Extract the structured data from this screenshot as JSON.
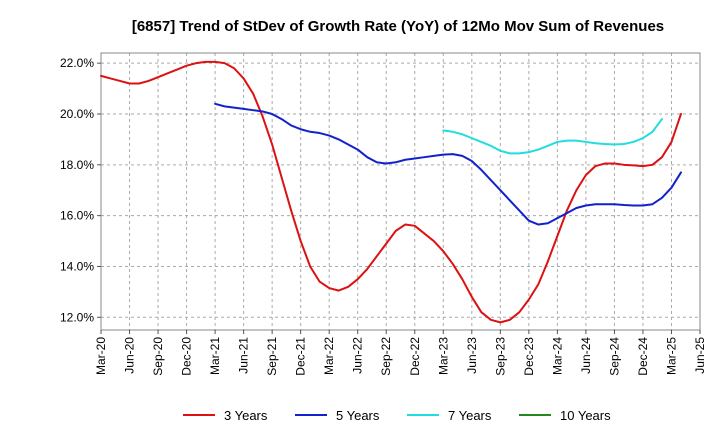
{
  "chart_data": {
    "type": "line",
    "title": "[6857]  Trend of StDev of Growth Rate (YoY) of 12Mo Mov Sum of Revenues",
    "xlabel": "",
    "ylabel": "",
    "x_tick_labels": [
      "Mar-20",
      "Jun-20",
      "Sep-20",
      "Dec-20",
      "Mar-21",
      "Jun-21",
      "Sep-21",
      "Dec-21",
      "Mar-22",
      "Jun-22",
      "Sep-22",
      "Dec-22",
      "Mar-23",
      "Jun-23",
      "Sep-23",
      "Dec-23",
      "Mar-24",
      "Jun-24",
      "Sep-24",
      "Dec-24",
      "Mar-25",
      "Jun-25"
    ],
    "y_ticks": [
      12.0,
      14.0,
      16.0,
      18.0,
      20.0,
      22.0
    ],
    "y_tick_labels": [
      "12.0%",
      "14.0%",
      "16.0%",
      "18.0%",
      "20.0%",
      "22.0%"
    ],
    "ylim": [
      11.5,
      22.4
    ],
    "grid": true,
    "legend_position": "bottom",
    "series": [
      {
        "name": "3 Years",
        "color": "#dd1111",
        "start_month_index": 0,
        "values": [
          21.5,
          21.4,
          21.3,
          21.2,
          21.2,
          21.3,
          21.45,
          21.6,
          21.75,
          21.9,
          22.0,
          22.05,
          22.05,
          22.0,
          21.8,
          21.4,
          20.8,
          19.9,
          18.8,
          17.5,
          16.2,
          15.0,
          14.0,
          13.4,
          13.15,
          13.05,
          13.2,
          13.5,
          13.9,
          14.4,
          14.9,
          15.4,
          15.65,
          15.6,
          15.3,
          15.0,
          14.6,
          14.1,
          13.5,
          12.8,
          12.2,
          11.9,
          11.8,
          11.9,
          12.2,
          12.7,
          13.3,
          14.2,
          15.2,
          16.2,
          17.0,
          17.6,
          17.95,
          18.05,
          18.05,
          18.0,
          17.98,
          17.95,
          18.0,
          18.3,
          18.9,
          20.0
        ]
      },
      {
        "name": "5 Years",
        "color": "#1122cc",
        "start_month_index": 12,
        "values": [
          20.4,
          20.3,
          20.25,
          20.2,
          20.15,
          20.1,
          20.0,
          19.8,
          19.55,
          19.4,
          19.3,
          19.25,
          19.15,
          19.0,
          18.8,
          18.6,
          18.3,
          18.1,
          18.05,
          18.1,
          18.2,
          18.25,
          18.3,
          18.35,
          18.4,
          18.42,
          18.35,
          18.15,
          17.8,
          17.4,
          17.0,
          16.6,
          16.2,
          15.8,
          15.65,
          15.7,
          15.9,
          16.1,
          16.3,
          16.4,
          16.45,
          16.45,
          16.45,
          16.42,
          16.4,
          16.4,
          16.45,
          16.7,
          17.1,
          17.7
        ]
      },
      {
        "name": "7 Years",
        "color": "#22dddd",
        "start_month_index": 36,
        "values": [
          19.35,
          19.3,
          19.2,
          19.05,
          18.9,
          18.75,
          18.55,
          18.45,
          18.45,
          18.5,
          18.6,
          18.75,
          18.9,
          18.95,
          18.95,
          18.9,
          18.85,
          18.82,
          18.8,
          18.82,
          18.9,
          19.05,
          19.3,
          19.8
        ]
      },
      {
        "name": "10 Years",
        "color": "#228822",
        "start_month_index": 0,
        "values": []
      }
    ]
  }
}
